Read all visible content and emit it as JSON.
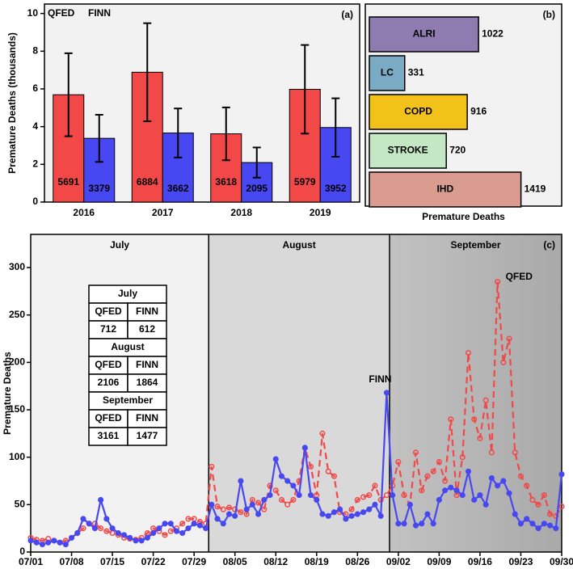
{
  "chart_data": [
    {
      "type": "bar",
      "panel": "(a)",
      "ylabel": "Premature Deaths (thousands)",
      "categories": [
        "2016",
        "2017",
        "2018",
        "2019"
      ],
      "series": [
        {
          "name": "QFED",
          "color": "#f24848",
          "values": [
            5.691,
            6.884,
            3.618,
            5.979
          ],
          "value_labels": [
            "5691",
            "6884",
            "3618",
            "5979"
          ],
          "errors": [
            2.2,
            2.6,
            1.4,
            2.35
          ]
        },
        {
          "name": "FINN",
          "color": "#4848f2",
          "values": [
            3.379,
            3.662,
            2.095,
            3.952
          ],
          "value_labels": [
            "3379",
            "3662",
            "2095",
            "3952"
          ],
          "errors": [
            1.25,
            1.3,
            0.8,
            1.55
          ]
        }
      ],
      "ylim": [
        0,
        10.5
      ],
      "yticks": [
        0,
        2,
        4,
        6,
        8,
        10
      ]
    },
    {
      "type": "hbar",
      "panel": "(b)",
      "xlabel": "Premature Deaths",
      "categories": [
        "ALRI",
        "LC",
        "COPD",
        "STROKE",
        "IHD"
      ],
      "values": [
        1022,
        331,
        916,
        720,
        1419
      ],
      "colors": [
        "#8e7bb0",
        "#7aaac4",
        "#f2c21b",
        "#c4e8c4",
        "#d99c8e"
      ],
      "xlim": [
        0,
        1800
      ]
    },
    {
      "type": "line",
      "panel": "(c)",
      "ylabel": "Premature Deaths",
      "months": [
        "July",
        "August",
        "September"
      ],
      "categories": [
        "07/01",
        null,
        null,
        null,
        null,
        null,
        null,
        "07/08",
        null,
        null,
        null,
        null,
        null,
        null,
        "07/15",
        null,
        null,
        null,
        null,
        null,
        null,
        "07/22",
        null,
        null,
        null,
        null,
        null,
        null,
        "07/29",
        null,
        null,
        null,
        null,
        null,
        null,
        "08/05",
        null,
        null,
        null,
        null,
        null,
        null,
        "08/12",
        null,
        null,
        null,
        null,
        null,
        null,
        "08/19",
        null,
        null,
        null,
        null,
        null,
        null,
        "08/26",
        null,
        null,
        null,
        null,
        null,
        null,
        "09/02",
        null,
        null,
        null,
        null,
        null,
        null,
        "09/09",
        null,
        null,
        null,
        null,
        null,
        null,
        "09/16",
        null,
        null,
        null,
        null,
        null,
        null,
        "09/23",
        null,
        null,
        null,
        null,
        null,
        null,
        "09/30"
      ],
      "series": [
        {
          "name": "QFED",
          "color": "#f24848",
          "values": [
            15,
            13,
            12,
            14,
            12,
            10,
            12,
            15,
            20,
            25,
            30,
            30,
            25,
            22,
            20,
            18,
            15,
            14,
            13,
            15,
            20,
            25,
            22,
            18,
            22,
            25,
            30,
            35,
            35,
            32,
            30,
            90,
            48,
            45,
            47,
            45,
            42,
            40,
            55,
            52,
            45,
            70,
            65,
            55,
            50,
            55,
            75,
            110,
            90,
            60,
            125,
            85,
            80,
            42,
            40,
            45,
            55,
            58,
            60,
            70,
            55,
            60,
            70,
            95,
            60,
            50,
            105,
            65,
            80,
            85,
            95,
            75,
            140,
            60,
            100,
            210,
            140,
            120,
            160,
            105,
            285,
            200,
            225,
            105,
            80,
            70,
            55,
            50,
            60,
            40,
            38,
            48
          ]
        },
        {
          "name": "FINN",
          "color": "#4848f2",
          "values": [
            12,
            10,
            8,
            10,
            12,
            10,
            8,
            15,
            20,
            35,
            30,
            25,
            55,
            35,
            25,
            20,
            18,
            15,
            12,
            12,
            15,
            20,
            25,
            30,
            30,
            22,
            20,
            25,
            30,
            28,
            25,
            50,
            35,
            30,
            40,
            38,
            75,
            45,
            50,
            40,
            55,
            60,
            98,
            80,
            75,
            70,
            60,
            110,
            60,
            55,
            40,
            38,
            42,
            45,
            35,
            38,
            40,
            42,
            45,
            50,
            38,
            168,
            60,
            30,
            30,
            50,
            28,
            30,
            40,
            30,
            55,
            65,
            68,
            65,
            60,
            85,
            55,
            60,
            50,
            78,
            70,
            75,
            62,
            40,
            30,
            35,
            30,
            25,
            30,
            28,
            25,
            82
          ]
        }
      ],
      "table": [
        {
          "month": "July",
          "values": [
            712,
            612
          ]
        },
        {
          "month": "August",
          "values": [
            2106,
            1864
          ]
        },
        {
          "month": "September",
          "values": [
            3161,
            1477
          ]
        }
      ],
      "ylim": [
        0,
        335
      ],
      "yticks": [
        0,
        50,
        100,
        150,
        200,
        250,
        300
      ]
    }
  ]
}
